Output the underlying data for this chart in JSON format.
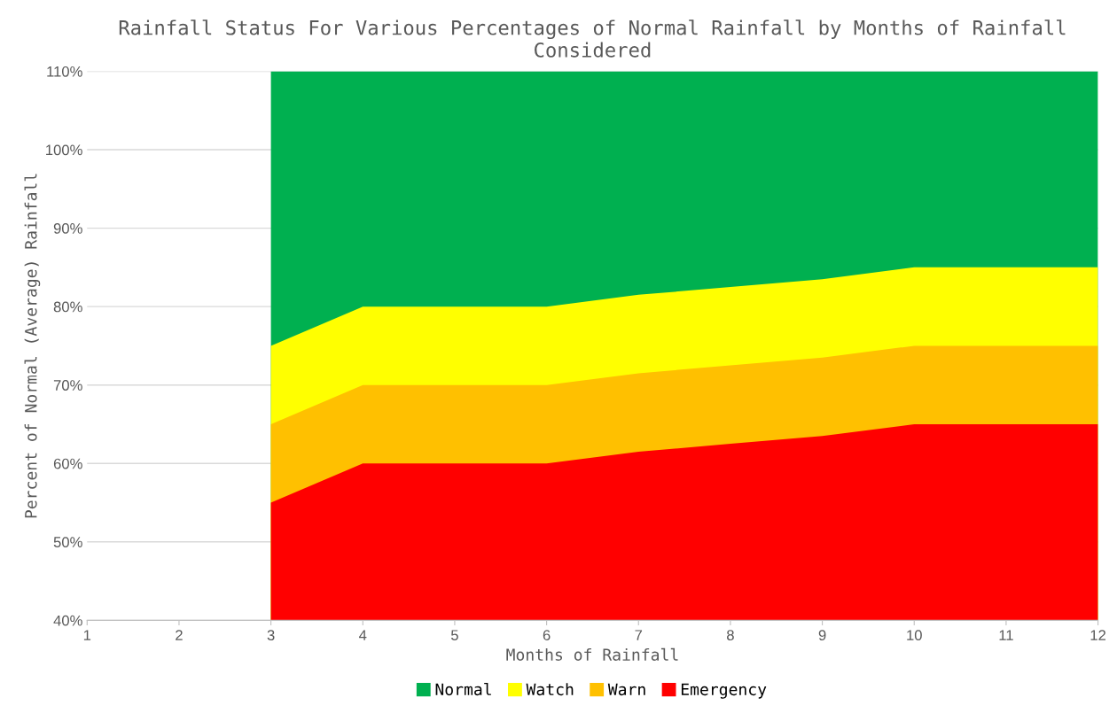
{
  "chart_data": {
    "type": "area",
    "title": "Rainfall Status For Various Percentages of Normal Rainfall by Months of Rainfall Considered",
    "xlabel": "Months of Rainfall",
    "ylabel": "Percent of Normal (Average) Rainfall",
    "x": [
      3,
      4,
      5,
      6,
      7,
      8,
      9,
      10,
      11,
      12
    ],
    "series": [
      {
        "name": "Normal",
        "color": "#00b050",
        "values": [
          110,
          110,
          110,
          110,
          110,
          110,
          110,
          110,
          110,
          110
        ]
      },
      {
        "name": "Watch",
        "color": "#ffff00",
        "values": [
          75,
          80,
          80,
          80,
          81.5,
          82.5,
          83.5,
          85,
          85,
          85
        ]
      },
      {
        "name": "Warn",
        "color": "#ffc000",
        "values": [
          65,
          70,
          70,
          70,
          71.5,
          72.5,
          73.5,
          75,
          75,
          75
        ]
      },
      {
        "name": "Emergency",
        "color": "#ff0000",
        "values": [
          55,
          60,
          60,
          60,
          61.5,
          62.5,
          63.5,
          65,
          65,
          65
        ]
      }
    ],
    "xlim": [
      1,
      12
    ],
    "xticks": [
      1,
      2,
      3,
      4,
      5,
      6,
      7,
      8,
      9,
      10,
      11,
      12
    ],
    "ylim": [
      40,
      110
    ],
    "yticks": [
      {
        "value": 40,
        "label": "40%"
      },
      {
        "value": 50,
        "label": "50%"
      },
      {
        "value": 60,
        "label": "60%"
      },
      {
        "value": 70,
        "label": "70%"
      },
      {
        "value": 80,
        "label": "80%"
      },
      {
        "value": 90,
        "label": "90%"
      },
      {
        "value": 100,
        "label": "100%"
      },
      {
        "value": 110,
        "label": "110%"
      }
    ],
    "grid": "y",
    "legend": "bottom"
  }
}
